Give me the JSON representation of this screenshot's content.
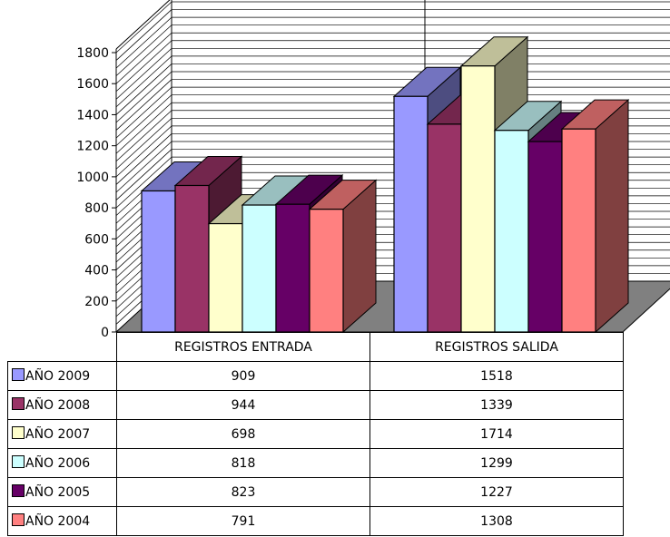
{
  "chart_data": {
    "type": "bar",
    "categories": [
      "REGISTROS ENTRADA",
      "REGISTROS SALIDA"
    ],
    "series": [
      {
        "name": "AÑO 2009",
        "color": "#9999ff",
        "values": [
          909,
          1518
        ]
      },
      {
        "name": "AÑO 2008",
        "color": "#993366",
        "values": [
          944,
          1339
        ]
      },
      {
        "name": "AÑO 2007",
        "color": "#ffffcc",
        "values": [
          698,
          1714
        ]
      },
      {
        "name": "AÑO 2006",
        "color": "#ccffff",
        "values": [
          818,
          1299
        ]
      },
      {
        "name": "AÑO 2005",
        "color": "#660066",
        "values": [
          823,
          1227
        ]
      },
      {
        "name": "AÑO 2004",
        "color": "#ff8080",
        "values": [
          791,
          1308
        ]
      }
    ],
    "yticks": [
      "0",
      "200",
      "400",
      "600",
      "800",
      "1000",
      "1200",
      "1400",
      "1600",
      "1800"
    ],
    "ylim": [
      0,
      1800
    ],
    "grid": true,
    "style": "3d-column",
    "legend": "data-table"
  }
}
